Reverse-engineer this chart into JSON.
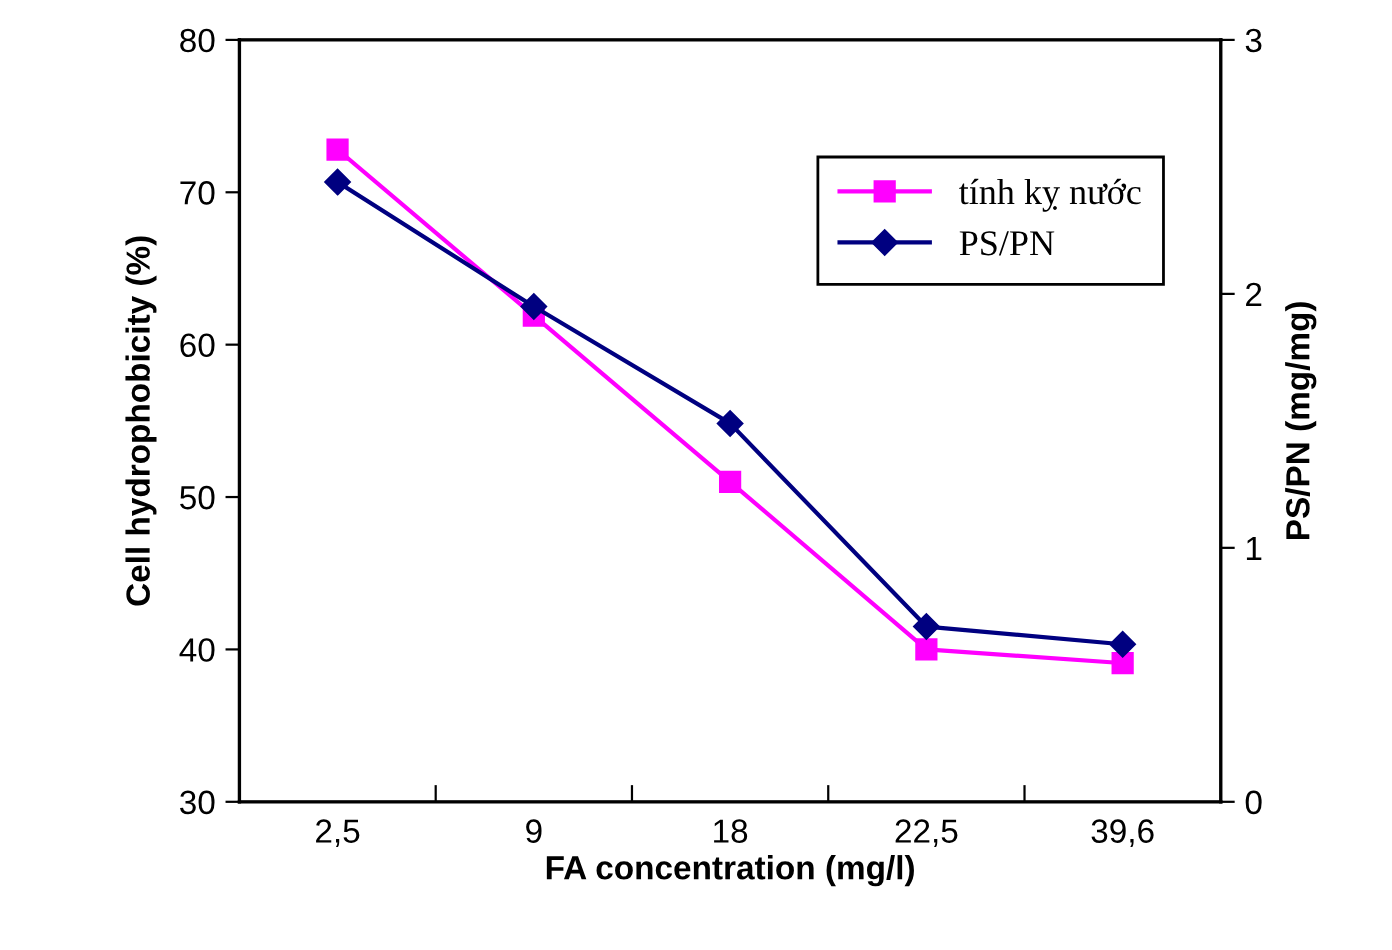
{
  "chart_data": {
    "type": "line",
    "xlabel": "FA concentration (mg/l)",
    "ylabel": "Cell hydrophobicity (%)",
    "y2label": "PS/PN (mg/mg)",
    "categories": [
      "2,5",
      "9",
      "18",
      "22,5",
      "39,6"
    ],
    "series": [
      {
        "name": "tính kỵ nước",
        "color": "#ff00ff",
        "marker": "square",
        "values": [
          72.8,
          61.9,
          51.0,
          40.0,
          39.1
        ]
      },
      {
        "name": "PS/PN",
        "color": "#000080",
        "marker": "diamond",
        "axis": "y2",
        "values": [
          2.44,
          1.95,
          1.49,
          0.69,
          0.62
        ]
      }
    ],
    "ylim": [
      30,
      80
    ],
    "yticks": [
      30,
      40,
      50,
      60,
      70,
      80
    ],
    "y2lim": [
      0,
      3
    ],
    "y2ticks": [
      0,
      1,
      2,
      3
    ],
    "grid": false,
    "legend": "top right",
    "line_style": "solid"
  }
}
